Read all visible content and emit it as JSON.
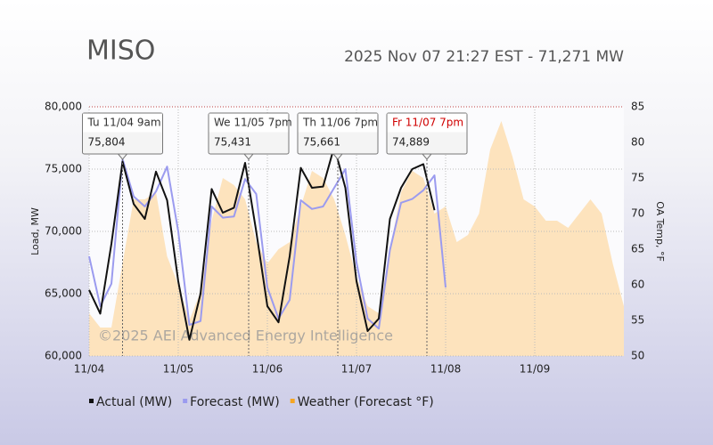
{
  "chart_data": {
    "type": "line",
    "title": "MISO",
    "subtitle": "2025 Nov 07 21:27 EST - 71,271 MW",
    "watermark": "©2025 AEI Advanced Energy Intelligence",
    "y_label": "Load, MW",
    "y2_label": "OA Temp, °F",
    "xlim": [
      0,
      6
    ],
    "xticks": [
      {
        "value": 0,
        "label": "11/04"
      },
      {
        "value": 1,
        "label": "11/05"
      },
      {
        "value": 2,
        "label": "11/06"
      },
      {
        "value": 3,
        "label": "11/07"
      },
      {
        "value": 4,
        "label": "11/08"
      },
      {
        "value": 5,
        "label": "11/09"
      }
    ],
    "ylim": [
      60000,
      80000
    ],
    "yticks": [
      {
        "value": 60000,
        "label": "60,000"
      },
      {
        "value": 65000,
        "label": "65,000"
      },
      {
        "value": 70000,
        "label": "70,000"
      },
      {
        "value": 75000,
        "label": "75,000"
      },
      {
        "value": 80000,
        "label": "80,000"
      }
    ],
    "y2lim": [
      50,
      85
    ],
    "y2ticks": [
      50,
      55,
      60,
      65,
      70,
      75,
      80,
      85
    ],
    "grid": true,
    "series": [
      {
        "name": "Weather (Forecast °F)",
        "color": "#fde3bd",
        "legend_color": "#f5a623",
        "axis": "y2",
        "kind": "area",
        "x": [
          0,
          0.125,
          0.25,
          0.375,
          0.5,
          0.625,
          0.75,
          0.875,
          1,
          1.125,
          1.25,
          1.375,
          1.5,
          1.625,
          1.75,
          1.875,
          2,
          2.125,
          2.25,
          2.375,
          2.5,
          2.625,
          2.75,
          2.875,
          3,
          3.125,
          3.25,
          3.375,
          3.5,
          3.625,
          3.75,
          3.875,
          4,
          4.125,
          4.25,
          4.375,
          4.5,
          4.625,
          4.75,
          4.875,
          5,
          5.125,
          5.25,
          5.375,
          5.5,
          5.625,
          5.75,
          5.875,
          6
        ],
        "values": [
          56,
          54,
          54,
          63,
          72,
          72,
          73,
          64,
          60,
          55,
          59,
          69,
          75,
          74,
          72,
          66,
          63,
          65,
          66,
          71,
          76,
          75,
          72,
          67,
          61,
          57,
          56,
          65,
          73,
          76,
          75,
          70,
          71,
          66,
          67,
          70,
          79,
          83,
          78,
          72,
          71,
          69,
          69,
          68,
          70,
          72,
          70,
          63,
          57
        ]
      },
      {
        "name": "Forecast (MW)",
        "color": "#9b9bef",
        "kind": "line",
        "x": [
          0,
          0.125,
          0.25,
          0.375,
          0.5,
          0.625,
          0.75,
          0.875,
          1,
          1.125,
          1.25,
          1.375,
          1.5,
          1.625,
          1.75,
          1.875,
          2,
          2.125,
          2.25,
          2.375,
          2.5,
          2.625,
          2.75,
          2.875,
          3,
          3.125,
          3.25,
          3.375,
          3.5,
          3.625,
          3.75,
          3.875,
          4
        ],
        "values": [
          68000,
          64000,
          65800,
          75800,
          72800,
          72000,
          73200,
          75200,
          70000,
          62500,
          62800,
          72000,
          71100,
          71200,
          74200,
          73000,
          65500,
          63000,
          64500,
          72500,
          71800,
          72000,
          73500,
          75000,
          67500,
          63000,
          62200,
          68500,
          72300,
          72600,
          73300,
          74500,
          65500
        ]
      },
      {
        "name": "Actual (MW)",
        "color": "#111111",
        "kind": "line",
        "x": [
          0,
          0.125,
          0.25,
          0.375,
          0.5,
          0.625,
          0.75,
          0.875,
          1,
          1.125,
          1.25,
          1.375,
          1.5,
          1.625,
          1.75,
          1.875,
          2,
          2.125,
          2.25,
          2.375,
          2.5,
          2.625,
          2.75,
          2.875,
          3,
          3.125,
          3.25,
          3.375,
          3.5,
          3.625,
          3.75,
          3.875
        ],
        "values": [
          65300,
          63400,
          69000,
          75600,
          72200,
          71000,
          74800,
          72500,
          66000,
          61300,
          65000,
          73400,
          71500,
          71900,
          75500,
          70000,
          64000,
          62700,
          68000,
          75100,
          73500,
          73600,
          76800,
          73500,
          66000,
          62000,
          63000,
          71000,
          73500,
          75000,
          75400,
          71700
        ]
      }
    ],
    "annotations": [
      {
        "label": "Tu 11/04 9am",
        "value_label": "75,804",
        "x": 0.375,
        "color": "#333333"
      },
      {
        "label": "We 11/05 7pm",
        "value_label": "75,431",
        "x": 1.79,
        "color": "#333333"
      },
      {
        "label": "Th 11/06 7pm",
        "value_label": "75,661",
        "x": 2.79,
        "color": "#333333"
      },
      {
        "label": "Fr 11/07 7pm",
        "value_label": "74,889",
        "x": 3.79,
        "color": "#d00000"
      }
    ]
  }
}
